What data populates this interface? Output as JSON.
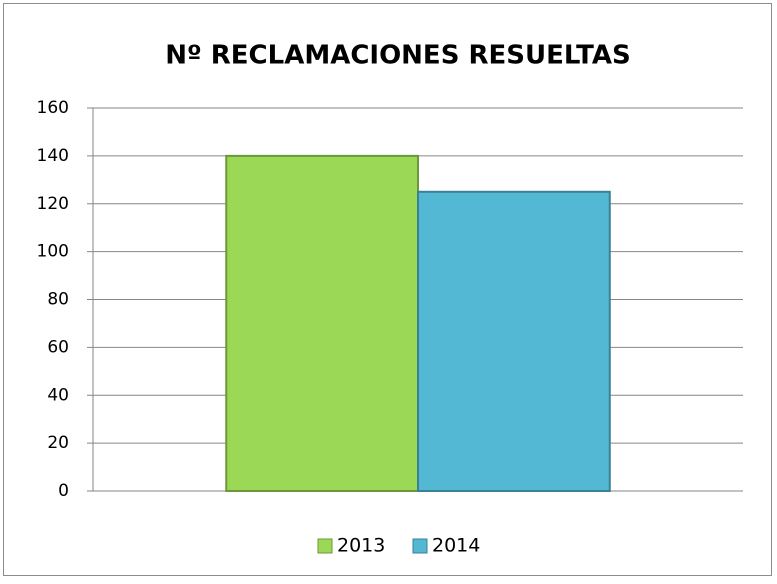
{
  "chart_data": {
    "type": "bar",
    "title": "Nº RECLAMACIONES RESUELTAS",
    "categories": [
      null
    ],
    "series": [
      {
        "name": "2013",
        "color": "#9bd855",
        "values": [
          140
        ]
      },
      {
        "name": "2014",
        "color": "#52b8d3",
        "values": [
          125
        ]
      }
    ],
    "ylim": [
      0,
      160
    ],
    "yticks": [
      0,
      20,
      40,
      60,
      80,
      100,
      120,
      140,
      160
    ],
    "grid": true,
    "legend": "bottom"
  }
}
